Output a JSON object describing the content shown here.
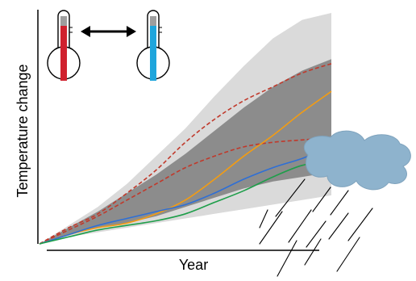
{
  "chart_data": {
    "type": "line",
    "xlabel": "Year",
    "ylabel": "Temperature change",
    "x": [
      0,
      0.1,
      0.2,
      0.3,
      0.4,
      0.5,
      0.6,
      0.7,
      0.8,
      0.9,
      1.0
    ],
    "xlim": [
      0,
      1
    ],
    "ylim": [
      0,
      1
    ],
    "bands": [
      {
        "name": "outer",
        "color": "#dadada",
        "upper": [
          0.0,
          0.08,
          0.16,
          0.26,
          0.38,
          0.5,
          0.64,
          0.77,
          0.89,
          0.97,
          1.0
        ],
        "lower": [
          0.0,
          0.03,
          0.05,
          0.07,
          0.09,
          0.11,
          0.13,
          0.15,
          0.17,
          0.19,
          0.21
        ]
      },
      {
        "name": "inner",
        "color": "#8c8c8c",
        "upper": [
          0.0,
          0.07,
          0.14,
          0.22,
          0.3,
          0.39,
          0.49,
          0.59,
          0.68,
          0.75,
          0.8
        ],
        "lower": [
          0.0,
          0.04,
          0.07,
          0.09,
          0.12,
          0.16,
          0.2,
          0.24,
          0.27,
          0.29,
          0.31
        ]
      }
    ],
    "series": [
      {
        "color": "#c0392b",
        "dash": true,
        "values": [
          0.0,
          0.07,
          0.13,
          0.22,
          0.32,
          0.44,
          0.54,
          0.62,
          0.68,
          0.74,
          0.78
        ]
      },
      {
        "color": "#c0392b",
        "dash": true,
        "values": [
          0.0,
          0.06,
          0.12,
          0.19,
          0.26,
          0.33,
          0.38,
          0.42,
          0.44,
          0.45,
          0.46
        ]
      },
      {
        "color": "#f39c12",
        "dash": false,
        "values": [
          0.0,
          0.04,
          0.07,
          0.09,
          0.13,
          0.19,
          0.28,
          0.38,
          0.47,
          0.57,
          0.66
        ]
      },
      {
        "color": "#2e6fd6",
        "dash": false,
        "values": [
          0.0,
          0.04,
          0.08,
          0.11,
          0.14,
          0.17,
          0.22,
          0.28,
          0.33,
          0.37,
          0.42
        ]
      },
      {
        "color": "#1e9e4a",
        "dash": false,
        "values": [
          0.0,
          0.03,
          0.06,
          0.08,
          0.1,
          0.13,
          0.18,
          0.23,
          0.29,
          0.34,
          0.36
        ]
      }
    ]
  },
  "illustrations": {
    "thermometer_hot_color": "#d0212e",
    "thermometer_cold_color": "#1ea5dc",
    "cloud_color": "#8eb3cd",
    "arrow_icon": "double-arrow-icon",
    "rain_icon": "rain-icon"
  }
}
